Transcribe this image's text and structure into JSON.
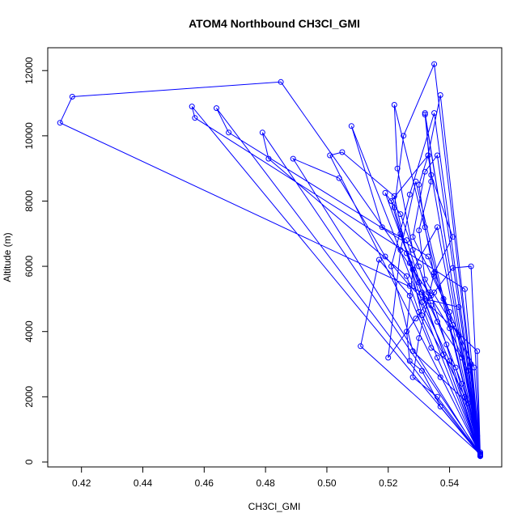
{
  "chart_data": {
    "type": "line",
    "title": "ATOM4 Northbound CH3Cl_GMI",
    "xlabel": "CH3Cl_GMI",
    "ylabel": "Altitude (m)",
    "xlim": [
      0.409,
      0.557
    ],
    "ylim": [
      -150,
      12700
    ],
    "xticks": [
      0.42,
      0.44,
      0.46,
      0.48,
      0.5,
      0.52,
      0.54
    ],
    "xtick_labels": [
      "0.42",
      "0.44",
      "0.46",
      "0.48",
      "0.50",
      "0.52",
      "0.54"
    ],
    "yticks": [
      0,
      2000,
      4000,
      6000,
      8000,
      10000,
      12000
    ],
    "ytick_labels": [
      "0",
      "2000",
      "4000",
      "6000",
      "8000",
      "10000",
      "12000"
    ],
    "grid": false,
    "series": [
      {
        "color": "#0000ff",
        "marker": "open-circle",
        "points": [
          {
            "x": 0.55,
            "y": 200
          },
          {
            "x": 0.548,
            "y": 1200
          },
          {
            "x": 0.544,
            "y": 2400
          },
          {
            "x": 0.539,
            "y": 3600
          },
          {
            "x": 0.534,
            "y": 4800
          },
          {
            "x": 0.53,
            "y": 6000
          },
          {
            "x": 0.524,
            "y": 7600
          },
          {
            "x": 0.519,
            "y": 8250
          },
          {
            "x": 0.55,
            "y": 250
          },
          {
            "x": 0.547,
            "y": 3000
          },
          {
            "x": 0.541,
            "y": 4200
          },
          {
            "x": 0.535,
            "y": 5700
          },
          {
            "x": 0.532,
            "y": 7200
          },
          {
            "x": 0.53,
            "y": 8500
          },
          {
            "x": 0.533,
            "y": 9400
          },
          {
            "x": 0.537,
            "y": 11250
          },
          {
            "x": 0.55,
            "y": 220
          },
          {
            "x": 0.545,
            "y": 2000
          },
          {
            "x": 0.538,
            "y": 3300
          },
          {
            "x": 0.531,
            "y": 4500
          },
          {
            "x": 0.527,
            "y": 6100
          },
          {
            "x": 0.522,
            "y": 7800
          },
          {
            "x": 0.525,
            "y": 10000
          },
          {
            "x": 0.535,
            "y": 12200
          },
          {
            "x": 0.55,
            "y": 180
          },
          {
            "x": 0.549,
            "y": 800
          },
          {
            "x": 0.546,
            "y": 2800
          },
          {
            "x": 0.54,
            "y": 4100
          },
          {
            "x": 0.533,
            "y": 5200
          },
          {
            "x": 0.528,
            "y": 6500
          },
          {
            "x": 0.523,
            "y": 9000
          },
          {
            "x": 0.522,
            "y": 10950
          },
          {
            "x": 0.55,
            "y": 300
          },
          {
            "x": 0.543,
            "y": 4750
          },
          {
            "x": 0.532,
            "y": 5000
          },
          {
            "x": 0.526,
            "y": 6800
          },
          {
            "x": 0.518,
            "y": 7200
          },
          {
            "x": 0.508,
            "y": 10300
          },
          {
            "x": 0.55,
            "y": 200
          },
          {
            "x": 0.546,
            "y": 1800
          },
          {
            "x": 0.537,
            "y": 2600
          },
          {
            "x": 0.528,
            "y": 3400
          },
          {
            "x": 0.521,
            "y": 6000
          },
          {
            "x": 0.527,
            "y": 8200
          },
          {
            "x": 0.535,
            "y": 10700
          },
          {
            "x": 0.55,
            "y": 230
          },
          {
            "x": 0.544,
            "y": 3200
          },
          {
            "x": 0.536,
            "y": 4300
          },
          {
            "x": 0.53,
            "y": 5500
          },
          {
            "x": 0.524,
            "y": 7000
          },
          {
            "x": 0.521,
            "y": 8000
          },
          {
            "x": 0.533,
            "y": 9400
          },
          {
            "x": 0.55,
            "y": 200
          },
          {
            "x": 0.547,
            "y": 6000
          },
          {
            "x": 0.541,
            "y": 5950
          },
          {
            "x": 0.535,
            "y": 5200
          },
          {
            "x": 0.529,
            "y": 4400
          },
          {
            "x": 0.52,
            "y": 3200
          },
          {
            "x": 0.524,
            "y": 6500
          },
          {
            "x": 0.529,
            "y": 8600
          },
          {
            "x": 0.55,
            "y": 260
          },
          {
            "x": 0.542,
            "y": 2900
          },
          {
            "x": 0.534,
            "y": 3500
          },
          {
            "x": 0.527,
            "y": 5100
          },
          {
            "x": 0.517,
            "y": 6200
          },
          {
            "x": 0.511,
            "y": 3550
          },
          {
            "x": 0.55,
            "y": 240
          },
          {
            "x": 0.548,
            "y": 2900
          },
          {
            "x": 0.538,
            "y": 5000
          },
          {
            "x": 0.528,
            "y": 6900
          },
          {
            "x": 0.532,
            "y": 8900
          },
          {
            "x": 0.536,
            "y": 9400
          },
          {
            "x": 0.55,
            "y": 200
          },
          {
            "x": 0.54,
            "y": 3100
          },
          {
            "x": 0.531,
            "y": 4900
          },
          {
            "x": 0.526,
            "y": 6400
          },
          {
            "x": 0.522,
            "y": 8150
          },
          {
            "x": 0.505,
            "y": 9500
          },
          {
            "x": 0.501,
            "y": 9400
          },
          {
            "x": 0.55,
            "y": 220
          },
          {
            "x": 0.543,
            "y": 3900
          },
          {
            "x": 0.532,
            "y": 5600
          },
          {
            "x": 0.53,
            "y": 7100
          },
          {
            "x": 0.534,
            "y": 8600
          },
          {
            "x": 0.532,
            "y": 10700
          },
          {
            "x": 0.55,
            "y": 180
          },
          {
            "x": 0.549,
            "y": 3400
          },
          {
            "x": 0.527,
            "y": 5400
          },
          {
            "x": 0.519,
            "y": 6300
          },
          {
            "x": 0.504,
            "y": 8700
          },
          {
            "x": 0.489,
            "y": 9300
          },
          {
            "x": 0.55,
            "y": 200
          },
          {
            "x": 0.536,
            "y": 3200
          },
          {
            "x": 0.53,
            "y": 4600
          },
          {
            "x": 0.526,
            "y": 5700
          },
          {
            "x": 0.481,
            "y": 9300
          },
          {
            "x": 0.479,
            "y": 10100
          },
          {
            "x": 0.55,
            "y": 250
          },
          {
            "x": 0.54,
            "y": 4600
          },
          {
            "x": 0.533,
            "y": 6300
          },
          {
            "x": 0.468,
            "y": 10100
          },
          {
            "x": 0.464,
            "y": 10850
          },
          {
            "x": 0.55,
            "y": 190
          },
          {
            "x": 0.545,
            "y": 5300
          },
          {
            "x": 0.457,
            "y": 10550
          },
          {
            "x": 0.456,
            "y": 10900
          },
          {
            "x": 0.55,
            "y": 210
          },
          {
            "x": 0.537,
            "y": 1700
          },
          {
            "x": 0.531,
            "y": 2800
          },
          {
            "x": 0.527,
            "y": 3100
          },
          {
            "x": 0.526,
            "y": 4000
          },
          {
            "x": 0.528,
            "y": 5900
          },
          {
            "x": 0.536,
            "y": 7200
          },
          {
            "x": 0.55,
            "y": 200
          },
          {
            "x": 0.531,
            "y": 5200
          },
          {
            "x": 0.413,
            "y": 10400
          },
          {
            "x": 0.417,
            "y": 11200
          },
          {
            "x": 0.485,
            "y": 11650
          },
          {
            "x": 0.534,
            "y": 5100
          },
          {
            "x": 0.55,
            "y": 220
          },
          {
            "x": 0.536,
            "y": 2000
          },
          {
            "x": 0.528,
            "y": 2600
          },
          {
            "x": 0.53,
            "y": 3800
          },
          {
            "x": 0.535,
            "y": 5800
          },
          {
            "x": 0.541,
            "y": 6900
          },
          {
            "x": 0.534,
            "y": 8800
          },
          {
            "x": 0.532,
            "y": 10650
          },
          {
            "x": 0.55,
            "y": 240
          }
        ]
      }
    ]
  }
}
